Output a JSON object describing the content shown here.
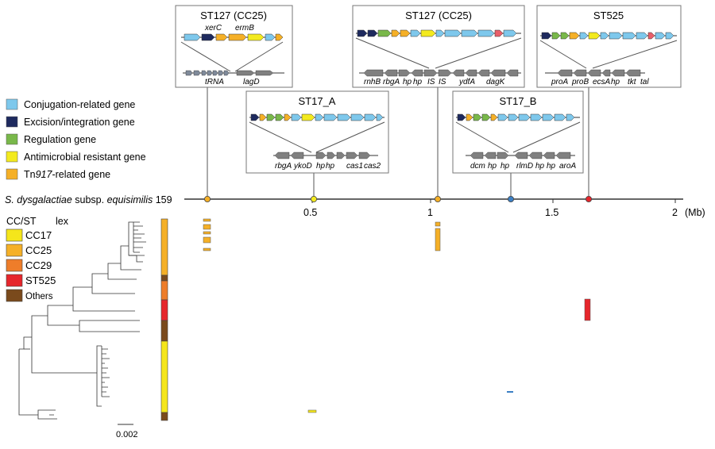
{
  "genome_label_italic": "S. dysgalactiae",
  "genome_label_rest": " subsp. ",
  "genome_label_italic2": "equisimilis",
  "genome_label_num": " 159",
  "axis_unit": "(Mb)",
  "axis_ticks": [
    "0.5",
    "1",
    "1.5",
    "2"
  ],
  "legend_genes": [
    {
      "label": "Conjugation-related gene",
      "color": "#7ec8ec"
    },
    {
      "label": "Excision/integration gene",
      "color": "#1e2a5e"
    },
    {
      "label": "Regulation gene",
      "color": "#79b84a"
    },
    {
      "label": "Antimicrobial resistant gene",
      "color": "#f3ea1f"
    },
    {
      "label_pre": "Tn",
      "label_it": "917",
      "label_post": "-related gene",
      "color": "#f5b027"
    }
  ],
  "legend_cc_title": "CC/ST",
  "legend_cc_sub": "lex",
  "legend_cc": [
    {
      "label": "CC17",
      "color": "#f5e61b"
    },
    {
      "label": "CC25",
      "color": "#f5b027"
    },
    {
      "label": "CC29",
      "color": "#ee7d2a"
    },
    {
      "label": "ST525",
      "color": "#e6262c"
    },
    {
      "label": "Others",
      "color": "#7a4a1c"
    }
  ],
  "scale_bar": "0.002",
  "insets": [
    {
      "title": "ST127 (CC25)",
      "top_labels": [
        "xerC",
        "ermB"
      ],
      "bottom_labels": [
        "tRNA",
        "lagD"
      ]
    },
    {
      "title": "ST127 (CC25)",
      "top_labels": [],
      "bottom_labels": [
        "rnhB",
        "rbgA",
        "hp",
        "hp",
        "IS",
        "IS",
        "ydfA",
        "dagK"
      ]
    },
    {
      "title": "ST525",
      "top_labels": [],
      "bottom_labels": [
        "proA",
        "proB",
        "ecsA",
        "hp",
        "tkt",
        "tal"
      ]
    },
    {
      "title": "ST17_A",
      "top_labels": [],
      "bottom_labels": [
        "rbgA",
        "ykoD",
        "hp",
        "hp",
        "cas1",
        "cas2"
      ]
    },
    {
      "title": "ST17_B",
      "top_labels": [],
      "bottom_labels": [
        "dcm",
        "hp",
        "hp",
        "rlmD",
        "hp",
        "hp",
        "aroA"
      ]
    }
  ]
}
